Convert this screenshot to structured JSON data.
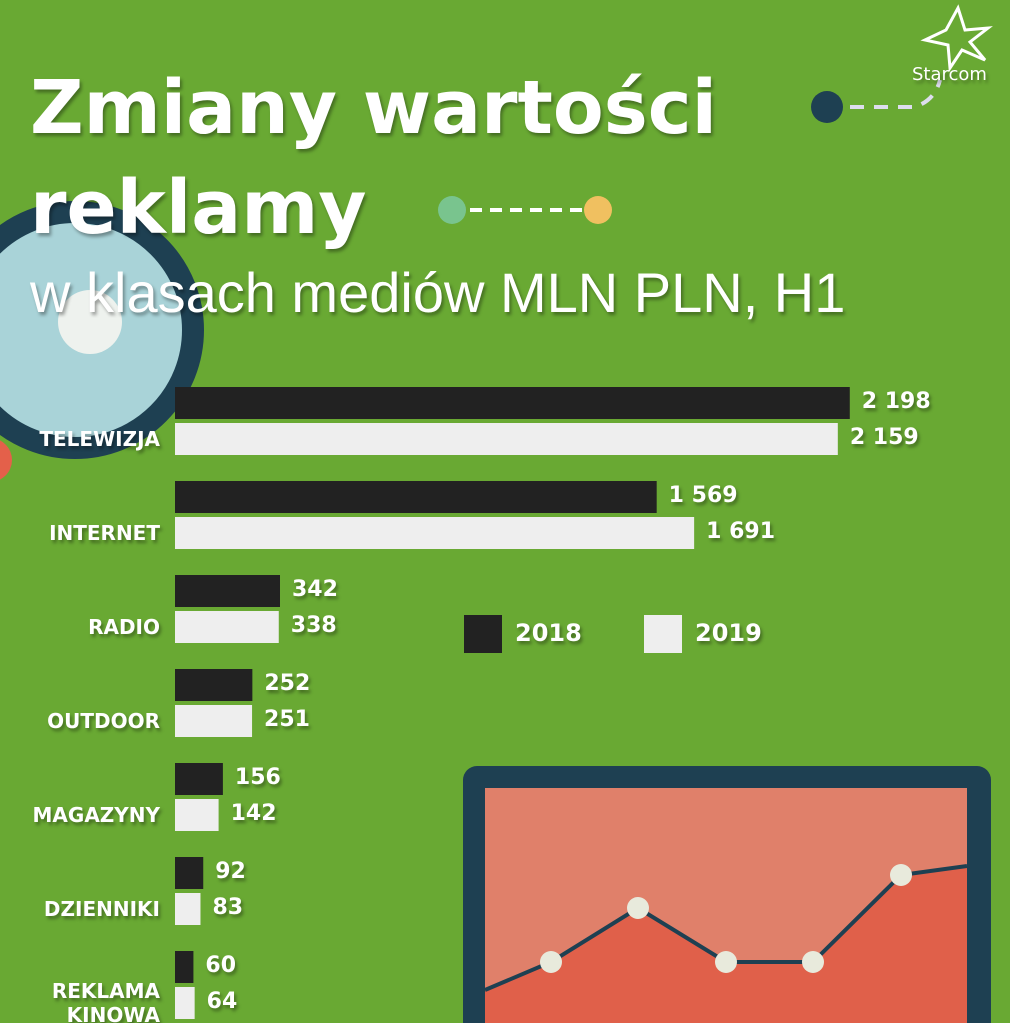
{
  "brand": "Starcom",
  "chart_data": {
    "type": "bar",
    "orientation": "horizontal",
    "title": "Zmiany wartości reklamy",
    "subtitle": "w klasach mediów MLN PLN, H1",
    "categories": [
      "TELEWIZJA",
      "INTERNET",
      "RADIO",
      "OUTDOOR",
      "MAGAZYNY",
      "DZIENNIKI",
      "REKLAMA KINOWA"
    ],
    "series": [
      {
        "name": "2018",
        "color": "#222222",
        "values": [
          2198,
          1569,
          342,
          252,
          156,
          92,
          60
        ],
        "value_labels": [
          "2 198",
          "1 569",
          "342",
          "252",
          "156",
          "92",
          "60"
        ]
      },
      {
        "name": "2019",
        "color": "#eeeeee",
        "values": [
          2159,
          1691,
          338,
          251,
          142,
          83,
          64
        ],
        "value_labels": [
          "2 159",
          "1 691",
          "338",
          "251",
          "142",
          "83",
          "64"
        ]
      }
    ]
  }
}
